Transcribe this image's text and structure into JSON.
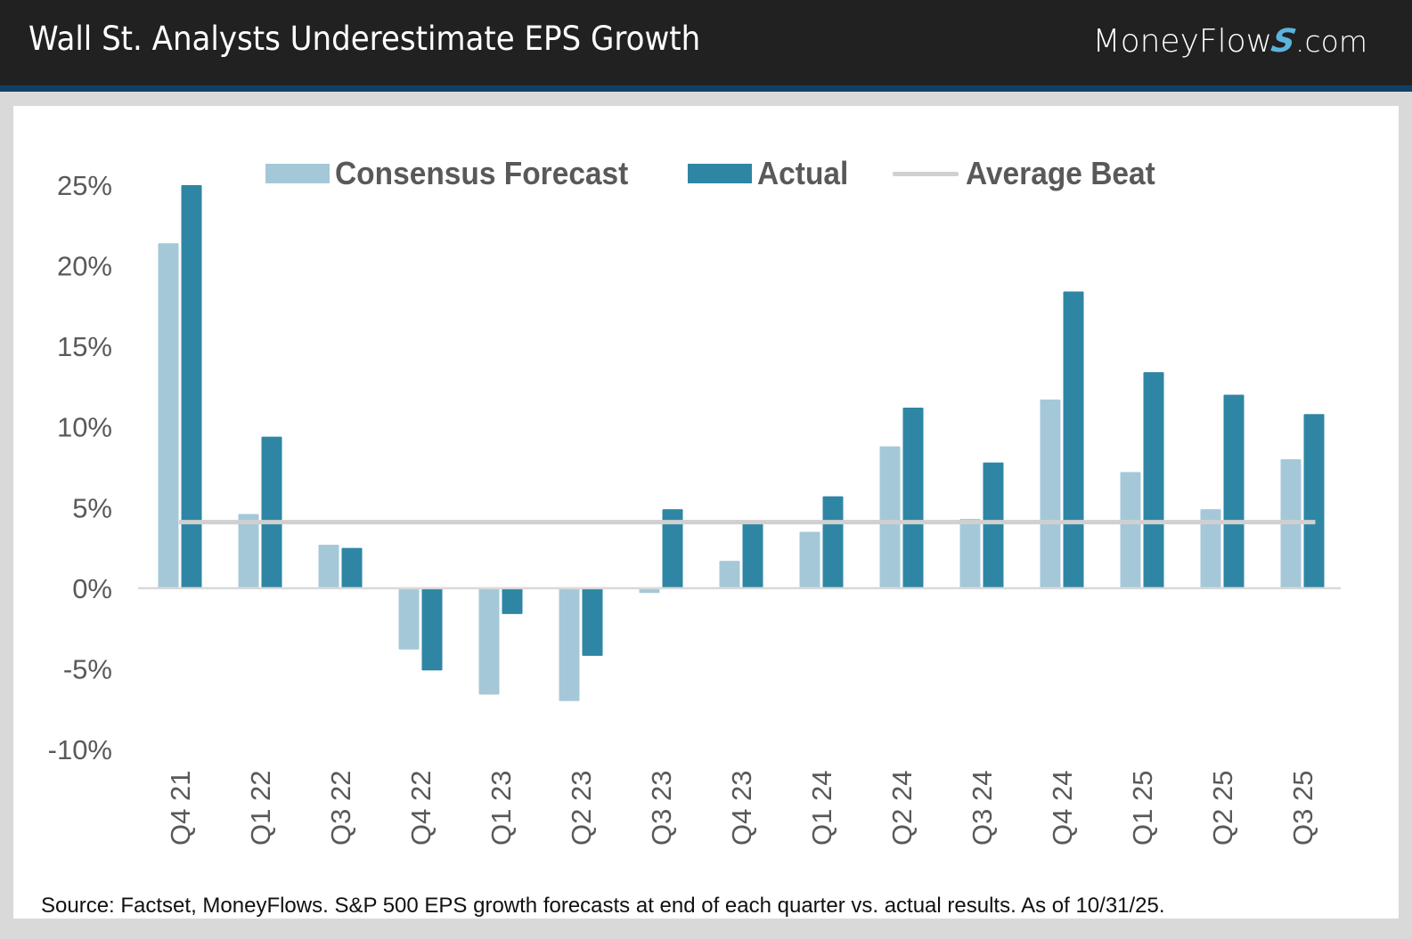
{
  "header": {
    "title": "Wall St. Analysts Underestimate EPS Growth",
    "logo": {
      "prefix": "MoneyFlow",
      "s_glyph": "S",
      "suffix": ".com"
    }
  },
  "colors": {
    "header_bg": "#212121",
    "header_stripe": "#113f66",
    "forecast": "#a5c8d9",
    "actual": "#2e86a4",
    "average_beat": "#d0d0d0",
    "axis_line": "#d9d9d9",
    "tick_text": "#595959"
  },
  "legend": {
    "items": [
      {
        "label": "Consensus Forecast",
        "kind": "swatch",
        "series": "forecast"
      },
      {
        "label": "Actual",
        "kind": "swatch",
        "series": "actual"
      },
      {
        "label": "Average Beat",
        "kind": "line",
        "series": "average_beat"
      }
    ]
  },
  "chart_data": {
    "type": "bar",
    "title": "Wall St. Analysts Underestimate EPS Growth",
    "xlabel": "",
    "ylabel": "",
    "ylim": [
      -10,
      25
    ],
    "yticks": [
      25,
      20,
      15,
      10,
      5,
      0,
      -5,
      -10
    ],
    "ytick_labels": [
      "25%",
      "20%",
      "15%",
      "10%",
      "5%",
      "0%",
      "-5%",
      "-10%"
    ],
    "categories": [
      "Q4 21",
      "Q1 22",
      "Q3 22",
      "Q4 22",
      "Q1 23",
      "Q2 23",
      "Q3 23",
      "Q4 23",
      "Q1 24",
      "Q2 24",
      "Q3 24",
      "Q4 24",
      "Q1 25",
      "Q2 25",
      "Q3 25"
    ],
    "series": [
      {
        "name": "Consensus Forecast",
        "type": "bar",
        "values": [
          21.4,
          4.6,
          2.7,
          -3.8,
          -6.6,
          -7.0,
          -0.3,
          1.7,
          3.5,
          8.8,
          4.3,
          11.7,
          7.2,
          4.9,
          8.0
        ]
      },
      {
        "name": "Actual",
        "type": "bar",
        "values": [
          25.0,
          9.4,
          2.5,
          -5.1,
          -1.6,
          -4.2,
          4.9,
          4.1,
          5.7,
          11.2,
          7.8,
          18.4,
          13.4,
          12.0,
          10.8
        ]
      },
      {
        "name": "Average Beat",
        "type": "line",
        "value": 4.1
      }
    ],
    "grid": false,
    "legend_position": "top"
  },
  "footer": {
    "source": "Source: Factset, MoneyFlows. S&P 500 EPS growth forecasts at end of each quarter vs. actual results. As of 10/31/25."
  }
}
